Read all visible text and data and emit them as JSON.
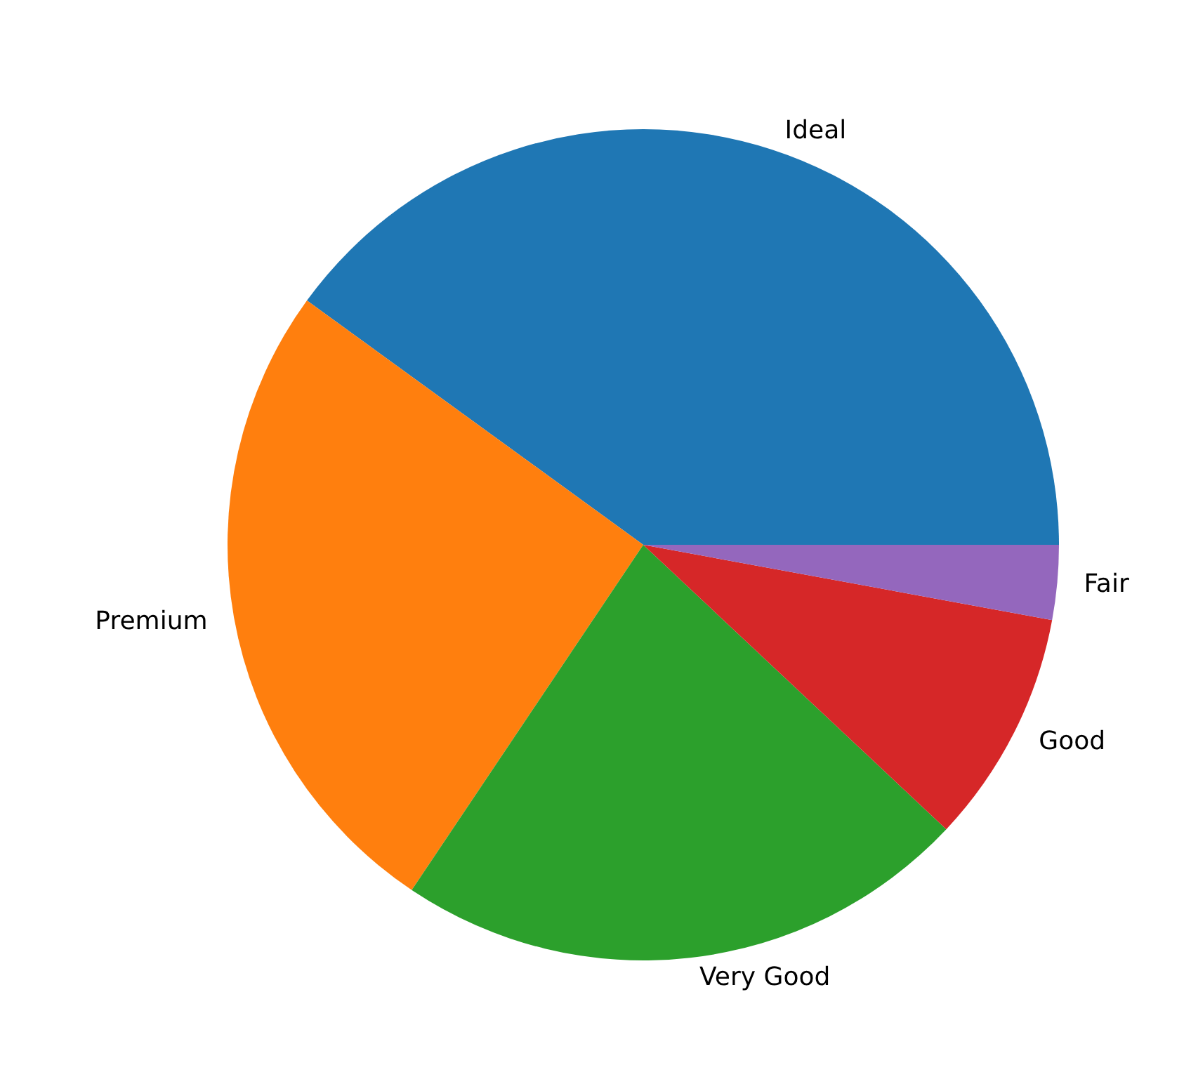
{
  "chart_data": {
    "type": "pie",
    "categories": [
      "Ideal",
      "Premium",
      "Very Good",
      "Good",
      "Fair"
    ],
    "values": [
      40.0,
      25.6,
      22.4,
      9.1,
      2.9
    ],
    "colors": [
      "#1f77b4",
      "#ff7f0e",
      "#2ca02c",
      "#d62728",
      "#9467bd"
    ],
    "legend": false
  }
}
